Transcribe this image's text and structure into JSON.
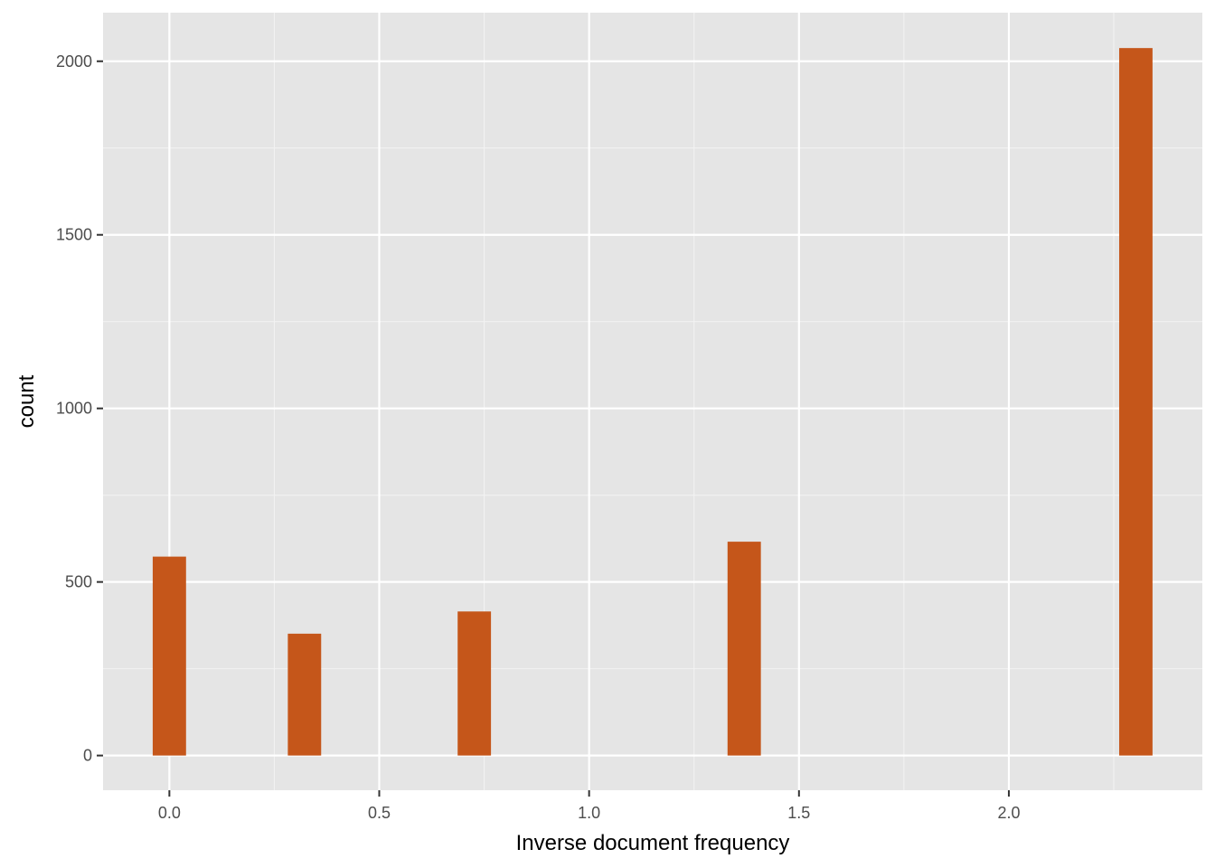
{
  "chart_data": {
    "type": "bar",
    "title": "",
    "xlabel": "Inverse document frequency",
    "ylabel": "count",
    "x": [
      0.0,
      0.3219,
      0.7265,
      1.3695,
      2.3026
    ],
    "values": [
      573,
      351,
      415,
      616,
      2038
    ],
    "bin_width": 0.0794,
    "xlim": [
      -0.158,
      2.461
    ],
    "ylim": [
      -100,
      2140
    ],
    "x_ticks": [
      0.0,
      0.5,
      1.0,
      1.5,
      2.0
    ],
    "x_tick_labels": [
      "0.0",
      "0.5",
      "1.0",
      "1.5",
      "2.0"
    ],
    "y_ticks": [
      0,
      500,
      1000,
      1500,
      2000
    ],
    "y_tick_labels": [
      "0",
      "500",
      "1000",
      "1500",
      "2000"
    ],
    "grid": true,
    "legend": "none",
    "colors": {
      "bar_fill": "#C5561A",
      "panel_background": "#E5E5E5",
      "grid_major": "#FFFFFF",
      "grid_minor": "#F2F2F2",
      "tick_text": "#4D4D4D",
      "title_text": "#000000"
    }
  }
}
